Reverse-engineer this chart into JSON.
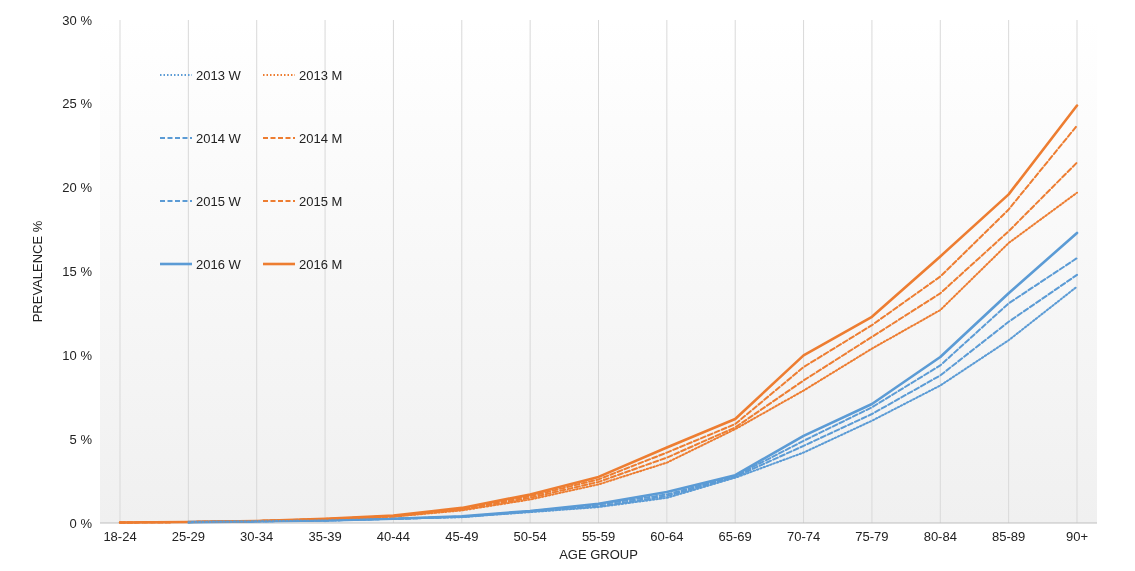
{
  "chart_data": {
    "type": "line",
    "xlabel": "AGE GROUP",
    "ylabel": "PREVALENCE %",
    "categories": [
      "18-24",
      "25-29",
      "30-34",
      "35-39",
      "40-44",
      "45-49",
      "50-54",
      "55-59",
      "60-64",
      "65-69",
      "70-74",
      "75-79",
      "80-84",
      "85-89",
      "90+"
    ],
    "series": [
      {
        "name": "2013 W",
        "color": "#5b9bd5",
        "line_style": "dotted",
        "values": [
          null,
          0.05,
          0.1,
          0.15,
          0.25,
          0.35,
          0.65,
          0.95,
          1.5,
          2.7,
          4.2,
          6.1,
          8.2,
          10.9,
          14.1
        ]
      },
      {
        "name": "2013 M",
        "color": "#ed7d31",
        "line_style": "dotted",
        "values": [
          0.03,
          0.06,
          0.12,
          0.22,
          0.38,
          0.75,
          1.4,
          2.3,
          3.6,
          5.6,
          7.9,
          10.4,
          12.7,
          16.7,
          19.7
        ]
      },
      {
        "name": "2014 W",
        "color": "#5b9bd5",
        "line_style": "dashed",
        "values": [
          null,
          0.05,
          0.1,
          0.15,
          0.25,
          0.36,
          0.68,
          1.0,
          1.6,
          2.75,
          4.6,
          6.5,
          8.8,
          12.0,
          14.8
        ]
      },
      {
        "name": "2014 M",
        "color": "#ed7d31",
        "line_style": "dashed",
        "values": [
          0.03,
          0.06,
          0.12,
          0.23,
          0.4,
          0.8,
          1.5,
          2.45,
          3.9,
          5.7,
          8.5,
          11.1,
          13.7,
          17.4,
          21.5
        ]
      },
      {
        "name": "2015 W",
        "color": "#5b9bd5",
        "line_style": "dashed",
        "values": [
          null,
          0.05,
          0.1,
          0.15,
          0.25,
          0.38,
          0.7,
          1.1,
          1.7,
          2.8,
          4.9,
          6.9,
          9.4,
          13.1,
          15.8
        ]
      },
      {
        "name": "2015 M",
        "color": "#ed7d31",
        "line_style": "dashed",
        "values": [
          0.03,
          0.06,
          0.12,
          0.24,
          0.42,
          0.85,
          1.6,
          2.6,
          4.2,
          5.9,
          9.3,
          11.8,
          14.7,
          18.7,
          23.7
        ]
      },
      {
        "name": "2016 W",
        "color": "#5b9bd5",
        "line_style": "solid",
        "values": [
          null,
          0.05,
          0.1,
          0.15,
          0.25,
          0.4,
          0.72,
          1.15,
          1.85,
          2.85,
          5.2,
          7.1,
          9.9,
          13.7,
          17.3
        ]
      },
      {
        "name": "2016 M",
        "color": "#ed7d31",
        "line_style": "solid",
        "values": [
          0.03,
          0.06,
          0.12,
          0.25,
          0.45,
          0.9,
          1.7,
          2.75,
          4.5,
          6.2,
          10.0,
          12.3,
          15.9,
          19.6,
          24.9
        ]
      }
    ],
    "ylim": [
      0,
      30
    ],
    "yticks": [
      {
        "value": 0,
        "label": "0 %"
      },
      {
        "value": 5,
        "label": "5 %"
      },
      {
        "value": 10,
        "label": "10 %"
      },
      {
        "value": 15,
        "label": "15 %"
      },
      {
        "value": 20,
        "label": "20 %"
      },
      {
        "value": 25,
        "label": "25 %"
      },
      {
        "value": 30,
        "label": "30 %"
      }
    ],
    "grid": "x",
    "legend": "top left",
    "marker": "none"
  }
}
